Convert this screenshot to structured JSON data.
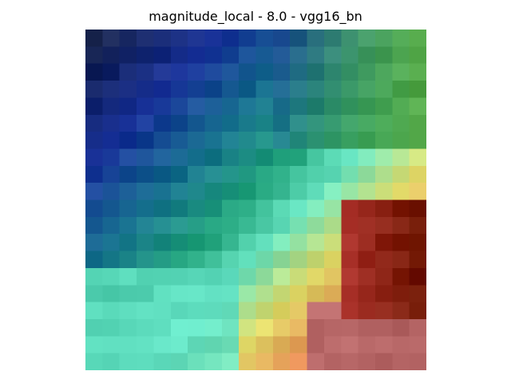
{
  "figure": {
    "title": "magnitude_local - 8.0 - vgg16_bn"
  },
  "image": {
    "description_palette": "blue-green-yellow-red blurred heatmap overlay",
    "palette": [
      "#1c2c5a",
      "#1e3ca8",
      "#1f8c8c",
      "#5cc97a",
      "#7ff0d8",
      "#e6e26a",
      "#e89a5c",
      "#d94a4a",
      "#8a2a10"
    ]
  }
}
